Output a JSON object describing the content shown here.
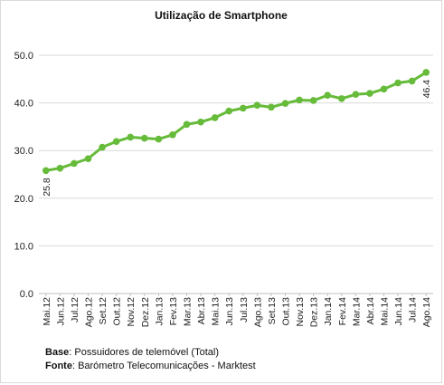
{
  "chart_data": {
    "type": "line",
    "title": "Utilização de Smartphone",
    "xlabel": "",
    "ylabel": "",
    "ylim": [
      0,
      50
    ],
    "ytick_labels": [
      "0.0",
      "10.0",
      "20.0",
      "30.0",
      "40.0",
      "50.0"
    ],
    "grid": true,
    "legend": "none",
    "categories": [
      "Mai.12",
      "Jun.12",
      "Jul.12",
      "Ago.12",
      "Set.12",
      "Out.12",
      "Nov.12",
      "Dez.12",
      "Jan.13",
      "Fev.13",
      "Mar.13",
      "Abr.13",
      "Mai.13",
      "Jun.13",
      "Jul.13",
      "Ago.13",
      "Set.13",
      "Out.13",
      "Nov.13",
      "Dez.13",
      "Jan.14",
      "Fev.14",
      "Mar.14",
      "Abr.14",
      "Mai.14",
      "Jun.14",
      "Jul.14",
      "Ago.14"
    ],
    "series": [
      {
        "values": [
          25.8,
          26.3,
          27.3,
          28.3,
          30.7,
          31.9,
          32.8,
          32.6,
          32.4,
          33.3,
          35.5,
          36.0,
          36.9,
          38.3,
          38.9,
          39.5,
          39.1,
          39.9,
          40.6,
          40.5,
          41.6,
          40.9,
          41.8,
          42.0,
          42.9,
          44.2,
          44.6,
          46.4
        ]
      }
    ],
    "data_labels": [
      {
        "index": 0,
        "text": "25.8"
      },
      {
        "index": 27,
        "text": "46.4"
      }
    ],
    "line_color": "#66bb3a",
    "grid_color": "#d9d9d9"
  },
  "footnotes": {
    "base_label": "Base",
    "base_text": ": Possuidores de telemóvel (Total)",
    "fonte_label": "Fonte",
    "fonte_text": ": Barómetro Telecomunicações - Marktest"
  }
}
